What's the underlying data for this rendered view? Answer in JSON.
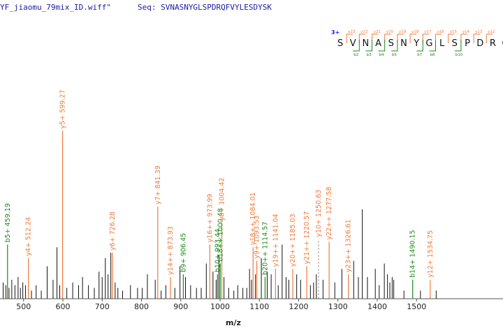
{
  "header": {
    "file_text": "YF_jiaomu_79mix_ID.wiff\"",
    "seq_label": "Seq:",
    "seq_value": "SVNASNYGLSPDRQFVYLESDYSK"
  },
  "colors": {
    "y_ion": "#f07a3a",
    "b_ion": "#1a8a1a",
    "unmatched": "#111111",
    "header": "#1a1aa6",
    "charge": "#1a1aff"
  },
  "sequence_panel": {
    "charge": "3+",
    "residues": [
      "S",
      "V",
      "N",
      "A",
      "S",
      "N",
      "Y",
      "G",
      "L",
      "S",
      "P",
      "D",
      "R",
      "Q"
    ],
    "y_labels": [
      "y23",
      "y22",
      "y21",
      "y20",
      "y19",
      "y18",
      "y17",
      "y16",
      "y15",
      "y14",
      "y13",
      "y12"
    ],
    "b_labels": [
      "b2",
      "b3",
      "b4",
      "b5",
      "b7",
      "b8",
      "b10"
    ]
  },
  "chart_data": {
    "type": "bar",
    "xlabel": "m/z",
    "ylabel": "",
    "xlim": [
      440,
      1720
    ],
    "ylim": [
      0,
      100
    ],
    "x_ticks": [
      500,
      600,
      700,
      800,
      900,
      1000,
      1100,
      1200,
      1300,
      1400,
      1500
    ],
    "annotated_peaks": [
      {
        "label": "b5+ 459.19",
        "mz": 459.19,
        "intensity": 20,
        "ion": "b",
        "dashed": false
      },
      {
        "label": "y4+ 512.24",
        "mz": 512.24,
        "intensity": 15,
        "ion": "y",
        "dashed": false
      },
      {
        "label": "y5+ 599.27",
        "mz": 599.27,
        "intensity": 62,
        "ion": "y",
        "dashed": false
      },
      {
        "label": "y6+ 726.28",
        "mz": 726.28,
        "intensity": 17,
        "ion": "y",
        "dashed": false
      },
      {
        "label": "y7+ 841.39",
        "mz": 841.39,
        "intensity": 34,
        "ion": "y",
        "dashed": false
      },
      {
        "label": "y14++ 873.93",
        "mz": 873.93,
        "intensity": 8,
        "ion": "y",
        "dashed": false
      },
      {
        "label": "b9+ 906.45",
        "mz": 906.45,
        "intensity": 9,
        "ion": "b",
        "dashed": false
      },
      {
        "label": "y16++ 973.99",
        "mz": 973.99,
        "intensity": 20,
        "ion": "y",
        "dashed": false
      },
      {
        "label": "b10+ 993.44",
        "mz": 993.44,
        "intensity": 9,
        "ion": "b",
        "dashed": false
      },
      {
        "label": "b18++ 1000.48",
        "mz": 1000.48,
        "intensity": 13,
        "ion": "b",
        "dashed": false
      },
      {
        "label": "y8+ 1004.42",
        "mz": 1004.42,
        "intensity": 28,
        "ion": "y",
        "dashed": false
      },
      {
        "label": "y18++ 1084.01",
        "mz": 1084.01,
        "intensity": 19,
        "ion": "y",
        "dashed": false
      },
      {
        "label": "y9+ 1093.53",
        "mz": 1093.53,
        "intensity": 14,
        "ion": "y",
        "dashed": false
      },
      {
        "label": "b20++ 1114.57",
        "mz": 1114.57,
        "intensity": 8,
        "ion": "b",
        "dashed": false
      },
      {
        "label": "y19++ 1141.04",
        "mz": 1141.04,
        "intensity": 11,
        "ion": "y",
        "dashed": false
      },
      {
        "label": "y20++ 1185.03",
        "mz": 1185.03,
        "intensity": 11,
        "ion": "y",
        "dashed": false
      },
      {
        "label": "y21++ 1220.57",
        "mz": 1220.57,
        "intensity": 12,
        "ion": "y",
        "dashed": false
      },
      {
        "label": "y10+ 1250.63",
        "mz": 1250.63,
        "intensity": 22,
        "ion": "y",
        "dashed": true
      },
      {
        "label": "y22++ 1277.58",
        "mz": 1277.58,
        "intensity": 21,
        "ion": "y",
        "dashed": false
      },
      {
        "label": "y23++ 1326.61",
        "mz": 1326.61,
        "intensity": 9,
        "ion": "y",
        "dashed": false
      },
      {
        "label": "b14+ 1490.15",
        "mz": 1490.15,
        "intensity": 7,
        "ion": "b",
        "dashed": false
      },
      {
        "label": "y12+ 1534.75",
        "mz": 1534.75,
        "intensity": 7,
        "ion": "y",
        "dashed": false
      }
    ],
    "unmatched_peaks": [
      [
        448,
        6
      ],
      [
        455,
        5
      ],
      [
        463,
        4
      ],
      [
        470,
        7
      ],
      [
        478,
        5
      ],
      [
        486,
        8
      ],
      [
        492,
        4
      ],
      [
        498,
        6
      ],
      [
        505,
        5
      ],
      [
        520,
        3
      ],
      [
        532,
        5
      ],
      [
        545,
        3
      ],
      [
        560,
        12
      ],
      [
        575,
        7
      ],
      [
        585,
        19
      ],
      [
        592,
        5
      ],
      [
        610,
        4
      ],
      [
        625,
        6
      ],
      [
        640,
        5
      ],
      [
        650,
        8
      ],
      [
        665,
        5
      ],
      [
        680,
        4
      ],
      [
        692,
        10
      ],
      [
        700,
        8
      ],
      [
        708,
        15
      ],
      [
        715,
        9
      ],
      [
        722,
        17
      ],
      [
        733,
        6
      ],
      [
        740,
        4
      ],
      [
        752,
        3
      ],
      [
        772,
        5
      ],
      [
        790,
        4
      ],
      [
        802,
        4
      ],
      [
        815,
        9
      ],
      [
        835,
        7
      ],
      [
        850,
        3
      ],
      [
        862,
        5
      ],
      [
        885,
        4
      ],
      [
        898,
        12
      ],
      [
        912,
        8
      ],
      [
        925,
        5
      ],
      [
        940,
        4
      ],
      [
        952,
        4
      ],
      [
        965,
        13
      ],
      [
        982,
        10
      ],
      [
        990,
        7
      ],
      [
        997,
        16
      ],
      [
        1010,
        8
      ],
      [
        1022,
        4
      ],
      [
        1035,
        3
      ],
      [
        1045,
        5
      ],
      [
        1058,
        4
      ],
      [
        1068,
        4
      ],
      [
        1075,
        11
      ],
      [
        1080,
        7
      ],
      [
        1090,
        9
      ],
      [
        1105,
        15
      ],
      [
        1120,
        10
      ],
      [
        1130,
        9
      ],
      [
        1148,
        5
      ],
      [
        1158,
        20
      ],
      [
        1168,
        8
      ],
      [
        1175,
        7
      ],
      [
        1195,
        9
      ],
      [
        1205,
        7
      ],
      [
        1230,
        5
      ],
      [
        1238,
        6
      ],
      [
        1245,
        9
      ],
      [
        1262,
        7
      ],
      [
        1292,
        6
      ],
      [
        1310,
        11
      ],
      [
        1340,
        14
      ],
      [
        1352,
        8
      ],
      [
        1362,
        33
      ],
      [
        1375,
        8
      ],
      [
        1395,
        11
      ],
      [
        1405,
        5
      ],
      [
        1418,
        13
      ],
      [
        1426,
        9
      ],
      [
        1432,
        6
      ],
      [
        1438,
        8
      ],
      [
        1442,
        7
      ],
      [
        1468,
        3
      ],
      [
        1510,
        3
      ],
      [
        1550,
        3
      ]
    ]
  }
}
